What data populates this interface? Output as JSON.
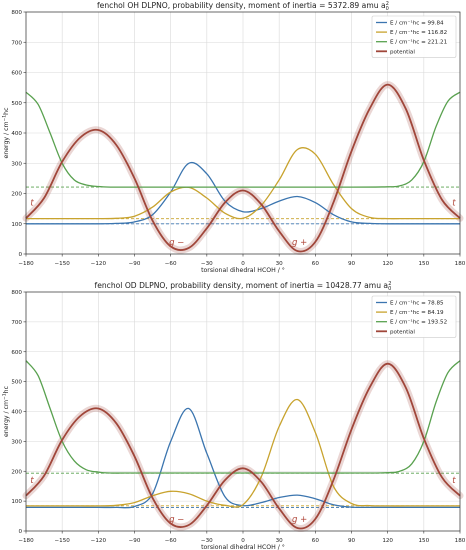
{
  "chart_data": [
    {
      "type": "line",
      "title": "fenchol OH DLPNO, probability density, moment of inertia = 5372.89 amu a",
      "title_sub": "0",
      "title_sup": "2",
      "xlabel": "torsional dihedral HCOH / °",
      "ylabel": "energy / cm",
      "ylabel_sup": "−1",
      "ylabel_tail": "hc",
      "xlim": [
        -180,
        180
      ],
      "ylim": [
        0,
        800
      ],
      "xticks": [
        -180,
        -150,
        -120,
        -90,
        -60,
        -30,
        0,
        30,
        60,
        90,
        120,
        150,
        180
      ],
      "yticks": [
        0,
        100,
        200,
        300,
        400,
        500,
        600,
        700,
        800
      ],
      "grid": true,
      "legend_position": "top-right",
      "potential": {
        "name": "potential",
        "color": "#a0463a",
        "x": [
          -180,
          -165,
          -150,
          -135,
          -120,
          -105,
          -90,
          -75,
          -60,
          -45,
          -30,
          -15,
          0,
          15,
          30,
          45,
          60,
          75,
          90,
          105,
          120,
          135,
          150,
          165,
          180
        ],
        "y": [
          118,
          185,
          305,
          385,
          410,
          360,
          250,
          110,
          25,
          20,
          85,
          170,
          210,
          165,
          75,
          10,
          40,
          170,
          340,
          480,
          560,
          480,
          310,
          180,
          118
        ]
      },
      "series": [
        {
          "name": "E / cm⁻¹hc = 99.84",
          "color": "#3b75af",
          "energy": 99.84,
          "x": [
            -180,
            -165,
            -150,
            -135,
            -120,
            -105,
            -90,
            -75,
            -60,
            -45,
            -30,
            -15,
            0,
            15,
            30,
            45,
            60,
            75,
            90,
            105,
            120,
            135,
            150,
            165,
            180
          ],
          "y": [
            100,
            100,
            100,
            100,
            100,
            101,
            106,
            130,
            205,
            300,
            265,
            175,
            140,
            150,
            175,
            190,
            170,
            130,
            106,
            101,
            100,
            100,
            100,
            100,
            100
          ]
        },
        {
          "name": "E / cm⁻¹hc = 116.82",
          "color": "#c8a32e",
          "energy": 116.82,
          "x": [
            -180,
            -165,
            -150,
            -135,
            -120,
            -105,
            -90,
            -75,
            -60,
            -45,
            -30,
            -15,
            0,
            15,
            30,
            45,
            60,
            75,
            90,
            105,
            120,
            135,
            150,
            165,
            180
          ],
          "y": [
            117,
            117,
            117,
            117,
            117,
            118,
            125,
            155,
            205,
            220,
            185,
            135,
            118,
            160,
            245,
            345,
            330,
            230,
            150,
            121,
            117,
            117,
            117,
            117,
            117
          ]
        },
        {
          "name": "E / cm⁻¹hc = 221.21",
          "color": "#59a14f",
          "energy": 221.21,
          "x": [
            -180,
            -170,
            -160,
            -150,
            -140,
            -130,
            -120,
            -110,
            -100,
            -90,
            -60,
            -30,
            0,
            30,
            60,
            90,
            120,
            130,
            140,
            150,
            160,
            170,
            180
          ],
          "y": [
            535,
            495,
            400,
            300,
            245,
            228,
            223,
            221,
            221,
            221,
            221,
            221,
            221,
            221,
            221,
            221,
            222,
            225,
            245,
            305,
            420,
            505,
            535
          ]
        }
      ],
      "annotations": [
        "t",
        "g −",
        "g +",
        "t"
      ]
    },
    {
      "type": "line",
      "title": "fenchol OD DLPNO, probability density, moment of inertia = 10428.77 amu a",
      "title_sub": "0",
      "title_sup": "2",
      "xlabel": "torsional dihedral HCOH / °",
      "ylabel": "energy / cm",
      "ylabel_sup": "−1",
      "ylabel_tail": "hc",
      "xlim": [
        -180,
        180
      ],
      "ylim": [
        0,
        800
      ],
      "xticks": [
        -180,
        -150,
        -120,
        -90,
        -60,
        -30,
        0,
        30,
        60,
        90,
        120,
        150,
        180
      ],
      "yticks": [
        0,
        100,
        200,
        300,
        400,
        500,
        600,
        700,
        800
      ],
      "grid": true,
      "legend_position": "top-right",
      "potential": {
        "name": "potential",
        "color": "#a0463a",
        "x": [
          -180,
          -165,
          -150,
          -135,
          -120,
          -105,
          -90,
          -75,
          -60,
          -45,
          -30,
          -15,
          0,
          15,
          30,
          45,
          60,
          75,
          90,
          105,
          120,
          135,
          150,
          165,
          180
        ],
        "y": [
          118,
          185,
          305,
          385,
          410,
          360,
          250,
          110,
          25,
          20,
          85,
          170,
          210,
          165,
          75,
          10,
          40,
          170,
          340,
          480,
          560,
          480,
          310,
          180,
          118
        ]
      },
      "series": [
        {
          "name": "E / cm⁻¹hc = 78.85",
          "color": "#3b75af",
          "energy": 78.85,
          "x": [
            -180,
            -165,
            -150,
            -135,
            -120,
            -105,
            -90,
            -75,
            -60,
            -45,
            -30,
            -15,
            0,
            15,
            30,
            45,
            60,
            75,
            90,
            105,
            120,
            135,
            150,
            165,
            180
          ],
          "y": [
            79,
            79,
            79,
            79,
            79,
            79,
            82,
            125,
            300,
            410,
            260,
            115,
            85,
            95,
            112,
            120,
            108,
            88,
            80,
            79,
            79,
            79,
            79,
            79,
            79
          ]
        },
        {
          "name": "E / cm⁻¹hc = 84.19",
          "color": "#c8a32e",
          "energy": 84.19,
          "x": [
            -180,
            -165,
            -150,
            -135,
            -120,
            -105,
            -90,
            -75,
            -60,
            -45,
            -30,
            -15,
            0,
            15,
            30,
            45,
            60,
            75,
            90,
            105,
            120,
            135,
            150,
            165,
            180
          ],
          "y": [
            84,
            84,
            84,
            84,
            84,
            86,
            95,
            118,
            133,
            125,
            100,
            86,
            88,
            180,
            350,
            440,
            330,
            150,
            92,
            85,
            84,
            84,
            84,
            84,
            84
          ]
        },
        {
          "name": "E / cm⁻¹hc = 193.52",
          "color": "#59a14f",
          "energy": 193.52,
          "x": [
            -180,
            -170,
            -160,
            -150,
            -140,
            -130,
            -120,
            -110,
            -100,
            -90,
            -60,
            -30,
            0,
            30,
            60,
            90,
            120,
            130,
            140,
            150,
            160,
            170,
            180
          ],
          "y": [
            570,
            520,
            410,
            300,
            235,
            205,
            197,
            194,
            194,
            194,
            194,
            194,
            194,
            194,
            194,
            194,
            195,
            200,
            225,
            300,
            430,
            530,
            570
          ]
        }
      ],
      "annotations": [
        "t",
        "g −",
        "g +",
        "t"
      ]
    }
  ]
}
